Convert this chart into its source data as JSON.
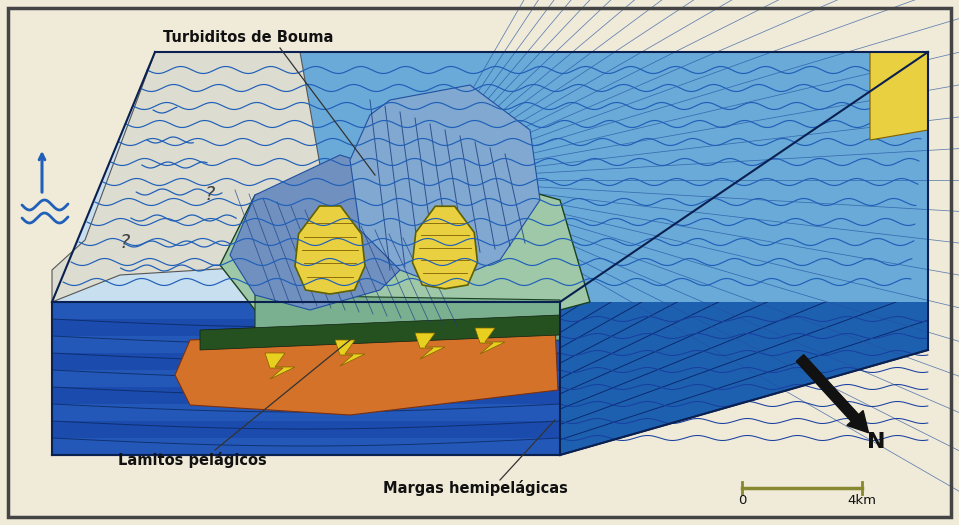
{
  "background_color": "#f0ead8",
  "border_color": "#444444",
  "labels": {
    "turbiditos": "Turbiditos de Bouma",
    "lamitos": "Lamitos pelágicos",
    "margas": "Margas hemipelágicas",
    "north": "N",
    "scale_left": "0",
    "scale_right": "4km"
  },
  "colors": {
    "deep_blue": "#1a4fa0",
    "medium_blue": "#3070c8",
    "light_blue": "#6aaad8",
    "very_light_blue": "#a8cce8",
    "pale_blue_top": "#c8dff0",
    "seafloor_green": "#7ab090",
    "light_seafloor": "#9ec8a8",
    "orange_deposit": "#d4722a",
    "yellow_deposit": "#e8d040",
    "dark_green": "#255020",
    "wave_blue": "#2060b8",
    "white_area": "#e8e8dc",
    "hatch_blue": "#5080b0",
    "front_face_dark": "#1238a0",
    "front_face_mid": "#2458b8",
    "right_face_blue": "#1e60b0"
  },
  "wave_color": "#2060b8",
  "arrow_color": "#2060b8",
  "north_arrow_color": "#111111",
  "scale_bar_color": "#888830",
  "text_color": "#111111"
}
